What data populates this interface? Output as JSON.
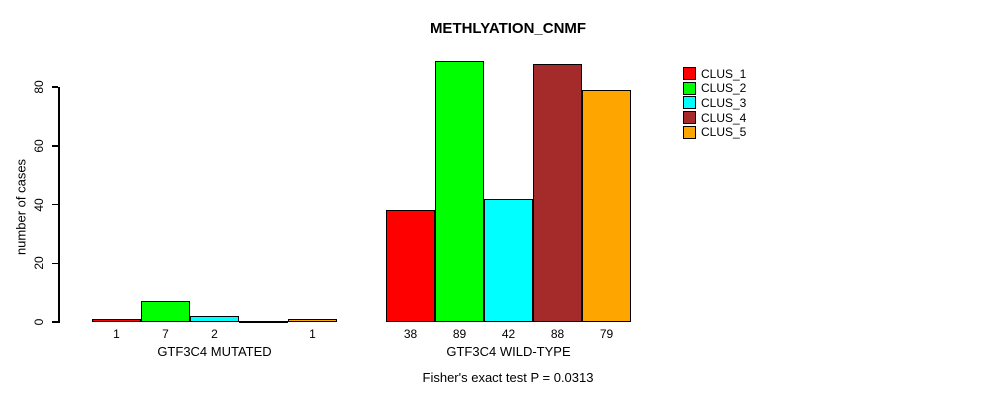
{
  "chart_data": {
    "type": "bar",
    "title": "METHLYATION_CNMF",
    "ylabel": "number of cases",
    "xlabel": "",
    "categories": [
      "GTF3C4 MUTATED",
      "GTF3C4 WILD-TYPE"
    ],
    "series": [
      {
        "name": "CLUS_1",
        "color": "#FF0000",
        "values": [
          1,
          38
        ]
      },
      {
        "name": "CLUS_2",
        "color": "#00FF00",
        "values": [
          7,
          89
        ]
      },
      {
        "name": "CLUS_3",
        "color": "#00FFFF",
        "values": [
          2,
          42
        ]
      },
      {
        "name": "CLUS_4",
        "color": "#A52A2A",
        "values": [
          0,
          88
        ]
      },
      {
        "name": "CLUS_5",
        "color": "#FFA500",
        "values": [
          1,
          79
        ]
      }
    ],
    "yticks": [
      0,
      20,
      40,
      60,
      80
    ],
    "ylim": [
      0,
      80
    ],
    "grid": false,
    "legend_position": "right",
    "bar_value_labels": "shown under each bar; zero-value bars drawn as flat line with no label",
    "annotation": "Fisher's exact test P = 0.0313"
  }
}
